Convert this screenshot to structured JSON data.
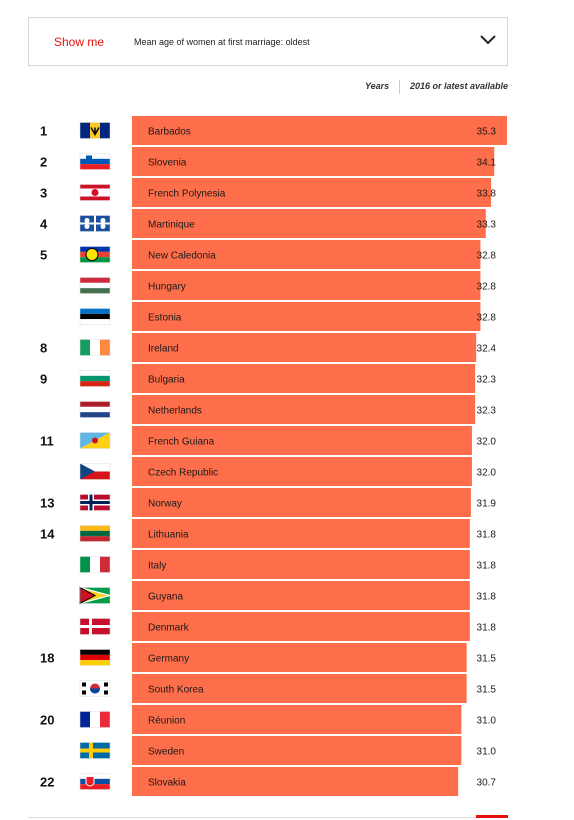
{
  "selector": {
    "show_label": "Show me",
    "metric_label": "Mean age of women at first marriage: oldest",
    "icon": "chevron-down-icon"
  },
  "columns": {
    "years": "Years",
    "latest": "2016 or latest available"
  },
  "colors": {
    "bar": "#ff6e4a",
    "accent": "#e3120b"
  },
  "chart_data": {
    "type": "bar",
    "orientation": "horizontal",
    "xlim": [
      0,
      35.3
    ],
    "rows": [
      {
        "rank": "1",
        "country": "Barbados",
        "value": 35.3
      },
      {
        "rank": "2",
        "country": "Slovenia",
        "value": 34.1
      },
      {
        "rank": "3",
        "country": "French Polynesia",
        "value": 33.8
      },
      {
        "rank": "4",
        "country": "Martinique",
        "value": 33.3
      },
      {
        "rank": "5",
        "country": "New Caledonia",
        "value": 32.8
      },
      {
        "rank": "",
        "country": "Hungary",
        "value": 32.8
      },
      {
        "rank": "",
        "country": "Estonia",
        "value": 32.8
      },
      {
        "rank": "8",
        "country": "Ireland",
        "value": 32.4
      },
      {
        "rank": "9",
        "country": "Bulgaria",
        "value": 32.3
      },
      {
        "rank": "",
        "country": "Netherlands",
        "value": 32.3
      },
      {
        "rank": "11",
        "country": "French Guiana",
        "value": 32.0
      },
      {
        "rank": "",
        "country": "Czech Republic",
        "value": 32.0
      },
      {
        "rank": "13",
        "country": "Norway",
        "value": 31.9
      },
      {
        "rank": "14",
        "country": "Lithuania",
        "value": 31.8
      },
      {
        "rank": "",
        "country": "Italy",
        "value": 31.8
      },
      {
        "rank": "",
        "country": "Guyana",
        "value": 31.8
      },
      {
        "rank": "",
        "country": "Denmark",
        "value": 31.8
      },
      {
        "rank": "18",
        "country": "Germany",
        "value": 31.5
      },
      {
        "rank": "",
        "country": "South Korea",
        "value": 31.5
      },
      {
        "rank": "20",
        "country": "Réunion",
        "value": 31.0
      },
      {
        "rank": "",
        "country": "Sweden",
        "value": 31.0
      },
      {
        "rank": "22",
        "country": "Slovakia",
        "value": 30.7
      }
    ]
  }
}
